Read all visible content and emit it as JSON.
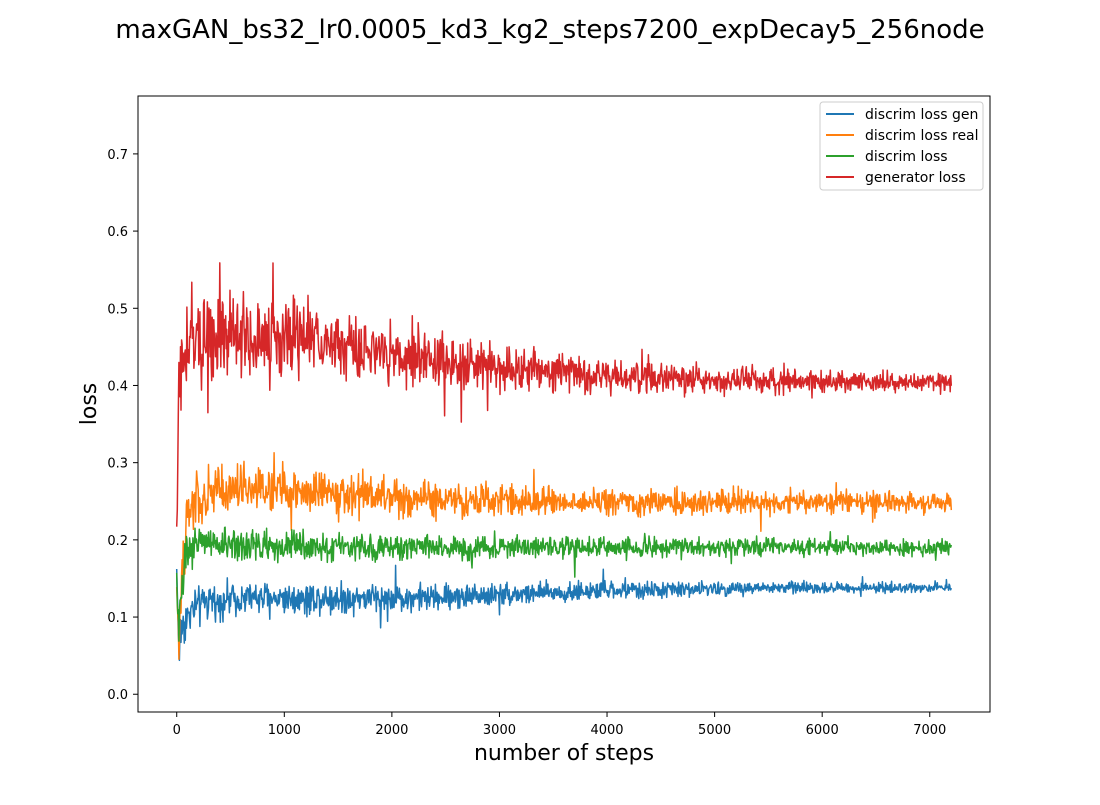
{
  "chart_data": {
    "type": "line",
    "title": "maxGAN_bs32_lr0.0005_kd3_kg2_steps7200_expDecay5_256node",
    "xlabel": "number of steps",
    "ylabel": "loss",
    "xlim": [
      -360,
      7560
    ],
    "ylim": [
      -0.023,
      0.775
    ],
    "xticks": [
      0,
      1000,
      2000,
      3000,
      4000,
      5000,
      6000,
      7000
    ],
    "xtick_labels": [
      "0",
      "1000",
      "2000",
      "3000",
      "4000",
      "5000",
      "6000",
      "7000"
    ],
    "yticks": [
      0.0,
      0.1,
      0.2,
      0.3,
      0.4,
      0.5,
      0.6,
      0.7
    ],
    "ytick_labels": [
      "0.0",
      "0.1",
      "0.2",
      "0.3",
      "0.4",
      "0.5",
      "0.6",
      "0.7"
    ],
    "grid": false,
    "legend_position": "top-right",
    "x": [
      0,
      20,
      50,
      100,
      150,
      200,
      300,
      400,
      500,
      600,
      700,
      800,
      900,
      1000,
      1100,
      1200,
      1300,
      1400,
      1500,
      1600,
      1700,
      1800,
      1900,
      2000,
      2200,
      2400,
      2600,
      2800,
      3000,
      3200,
      3400,
      3600,
      3800,
      4000,
      4200,
      4400,
      4600,
      4800,
      5000,
      5200,
      5400,
      5600,
      5800,
      6000,
      6200,
      6400,
      6600,
      6800,
      7000,
      7200
    ],
    "series": [
      {
        "name": "discrim loss gen",
        "color": "#1f77b4",
        "values": [
          0.16,
          0.06,
          0.09,
          0.1,
          0.11,
          0.115,
          0.12,
          0.12,
          0.125,
          0.125,
          0.125,
          0.125,
          0.125,
          0.125,
          0.125,
          0.125,
          0.125,
          0.125,
          0.125,
          0.125,
          0.125,
          0.125,
          0.125,
          0.125,
          0.125,
          0.125,
          0.127,
          0.128,
          0.13,
          0.13,
          0.131,
          0.132,
          0.133,
          0.134,
          0.135,
          0.135,
          0.136,
          0.136,
          0.137,
          0.137,
          0.137,
          0.138,
          0.138,
          0.138,
          0.138,
          0.138,
          0.138,
          0.138,
          0.138,
          0.138
        ],
        "noise": [
          0.02,
          0.05,
          0.05,
          0.04,
          0.035,
          0.035,
          0.03,
          0.03,
          0.03,
          0.03,
          0.03,
          0.03,
          0.03,
          0.03,
          0.03,
          0.03,
          0.03,
          0.03,
          0.03,
          0.03,
          0.028,
          0.028,
          0.028,
          0.027,
          0.026,
          0.025,
          0.024,
          0.023,
          0.022,
          0.021,
          0.02,
          0.019,
          0.018,
          0.017,
          0.016,
          0.015,
          0.015,
          0.014,
          0.013,
          0.012,
          0.012,
          0.011,
          0.011,
          0.01,
          0.01,
          0.009,
          0.009,
          0.008,
          0.008,
          0.008
        ]
      },
      {
        "name": "discrim loss real",
        "color": "#ff7f0e",
        "values": [
          0.13,
          0.05,
          0.18,
          0.22,
          0.24,
          0.25,
          0.255,
          0.26,
          0.262,
          0.263,
          0.264,
          0.264,
          0.264,
          0.264,
          0.263,
          0.262,
          0.261,
          0.26,
          0.259,
          0.258,
          0.257,
          0.256,
          0.256,
          0.255,
          0.254,
          0.253,
          0.252,
          0.251,
          0.25,
          0.25,
          0.25,
          0.25,
          0.249,
          0.249,
          0.249,
          0.249,
          0.249,
          0.249,
          0.249,
          0.249,
          0.249,
          0.249,
          0.249,
          0.249,
          0.249,
          0.249,
          0.249,
          0.249,
          0.249,
          0.249
        ],
        "noise": [
          0.06,
          0.06,
          0.07,
          0.06,
          0.055,
          0.05,
          0.05,
          0.05,
          0.048,
          0.048,
          0.047,
          0.046,
          0.045,
          0.044,
          0.043,
          0.042,
          0.041,
          0.04,
          0.039,
          0.038,
          0.037,
          0.036,
          0.035,
          0.034,
          0.033,
          0.032,
          0.031,
          0.03,
          0.029,
          0.028,
          0.027,
          0.026,
          0.025,
          0.025,
          0.024,
          0.024,
          0.023,
          0.023,
          0.022,
          0.022,
          0.021,
          0.021,
          0.02,
          0.02,
          0.02,
          0.019,
          0.019,
          0.018,
          0.018,
          0.018
        ]
      },
      {
        "name": "discrim loss",
        "color": "#2ca02c",
        "values": [
          0.15,
          0.08,
          0.15,
          0.18,
          0.19,
          0.195,
          0.195,
          0.195,
          0.195,
          0.194,
          0.194,
          0.193,
          0.193,
          0.192,
          0.192,
          0.191,
          0.19,
          0.19,
          0.19,
          0.19,
          0.19,
          0.19,
          0.19,
          0.19,
          0.19,
          0.19,
          0.19,
          0.19,
          0.19,
          0.19,
          0.19,
          0.19,
          0.19,
          0.19,
          0.19,
          0.19,
          0.19,
          0.19,
          0.19,
          0.19,
          0.19,
          0.19,
          0.19,
          0.19,
          0.19,
          0.19,
          0.19,
          0.19,
          0.19,
          0.19
        ],
        "noise": [
          0.04,
          0.05,
          0.05,
          0.04,
          0.035,
          0.035,
          0.03,
          0.03,
          0.03,
          0.03,
          0.03,
          0.029,
          0.029,
          0.028,
          0.028,
          0.027,
          0.027,
          0.026,
          0.026,
          0.025,
          0.025,
          0.024,
          0.024,
          0.023,
          0.023,
          0.022,
          0.022,
          0.021,
          0.021,
          0.02,
          0.02,
          0.019,
          0.019,
          0.018,
          0.018,
          0.018,
          0.017,
          0.017,
          0.017,
          0.016,
          0.016,
          0.016,
          0.015,
          0.015,
          0.015,
          0.015,
          0.014,
          0.014,
          0.014,
          0.014
        ]
      },
      {
        "name": "generator loss",
        "color": "#d62728",
        "values": [
          0.2,
          0.4,
          0.43,
          0.45,
          0.46,
          0.46,
          0.465,
          0.465,
          0.465,
          0.465,
          0.465,
          0.464,
          0.463,
          0.462,
          0.46,
          0.458,
          0.456,
          0.454,
          0.452,
          0.45,
          0.448,
          0.446,
          0.444,
          0.442,
          0.438,
          0.434,
          0.43,
          0.427,
          0.424,
          0.421,
          0.418,
          0.416,
          0.414,
          0.412,
          0.41,
          0.409,
          0.408,
          0.407,
          0.406,
          0.406,
          0.405,
          0.405,
          0.405,
          0.405,
          0.405,
          0.405,
          0.404,
          0.404,
          0.404,
          0.404
        ],
        "noise": [
          0.08,
          0.1,
          0.1,
          0.09,
          0.085,
          0.08,
          0.08,
          0.08,
          0.078,
          0.077,
          0.076,
          0.075,
          0.074,
          0.072,
          0.07,
          0.068,
          0.066,
          0.064,
          0.062,
          0.06,
          0.058,
          0.056,
          0.054,
          0.052,
          0.05,
          0.048,
          0.046,
          0.044,
          0.042,
          0.04,
          0.038,
          0.036,
          0.034,
          0.032,
          0.03,
          0.029,
          0.028,
          0.027,
          0.026,
          0.025,
          0.024,
          0.023,
          0.022,
          0.021,
          0.02,
          0.019,
          0.018,
          0.017,
          0.016,
          0.016
        ]
      }
    ]
  }
}
